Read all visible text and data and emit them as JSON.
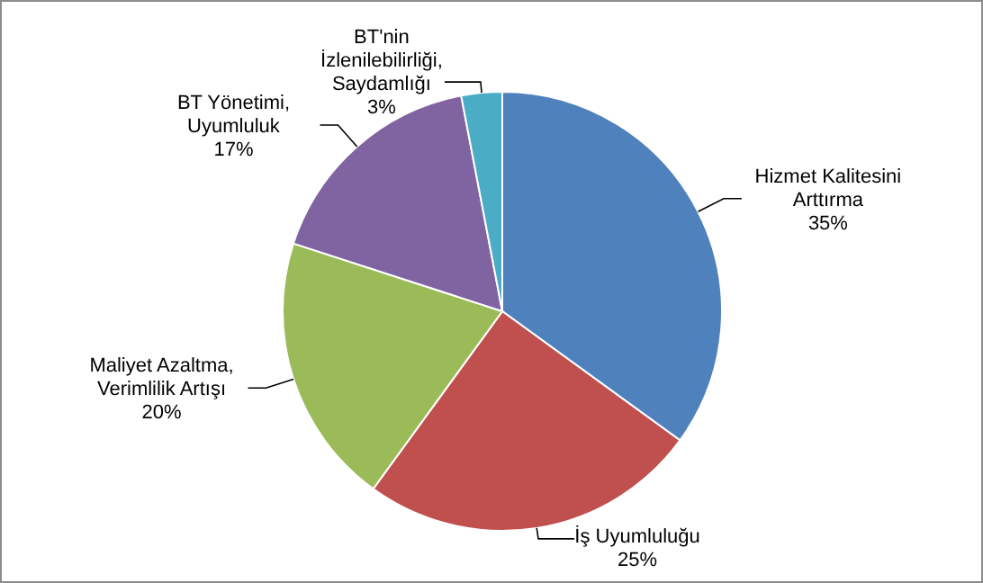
{
  "chart_data": {
    "type": "pie",
    "categories": [
      "Hizmet Kalitesini Arttırma",
      "İş Uyumluluğu",
      "Maliyet Azaltma, Verimlilik Artışı",
      "BT Yönetimi, Uyumluluk",
      "BT'nin İzlenilebilirliği, Saydamlığı"
    ],
    "values": [
      35,
      25,
      20,
      17,
      3
    ],
    "value_labels": [
      "35%",
      "25%",
      "20%",
      "17%",
      "3%"
    ],
    "colors": [
      "#4f81bd",
      "#c0504d",
      "#9bbb59",
      "#8064a2",
      "#4bacc6"
    ],
    "legend": false
  }
}
